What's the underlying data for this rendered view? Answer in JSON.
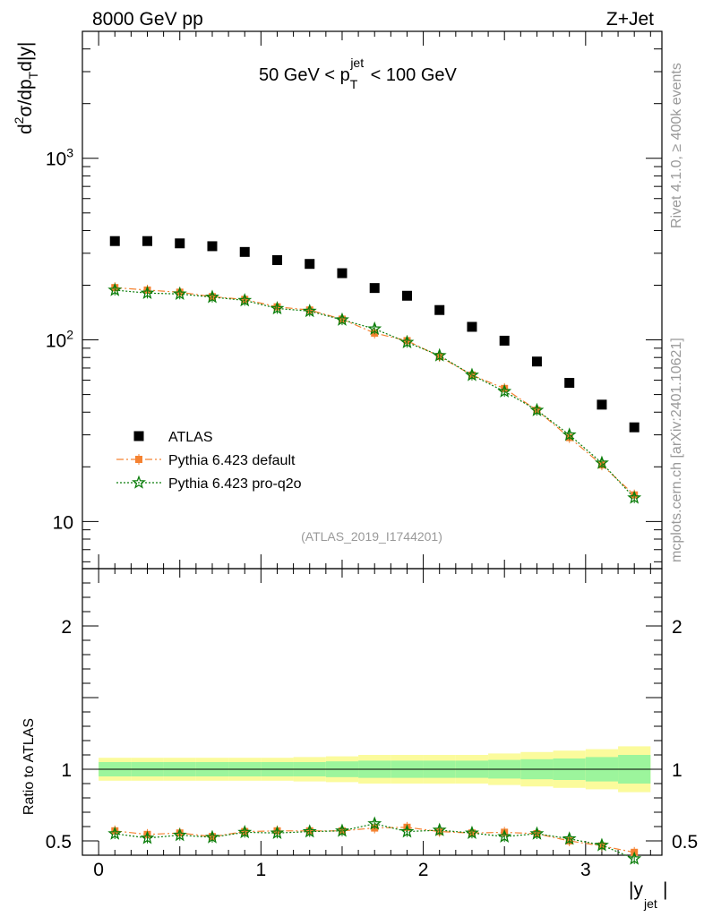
{
  "header": {
    "left": "8000 GeV pp",
    "right": "Z+Jet"
  },
  "main_panel": {
    "ylabel": "d²σ/dp_T d|y|",
    "cut_label": "50 GeV < p_T^jet < 100 GeV",
    "watermark": "(ATLAS_2019_I1744201)",
    "side_label_top": "Rivet 4.1.0, ≥ 400k events",
    "side_label_bottom": "mcplots.cern.ch [arXiv:2401.10621]",
    "yticks": [
      "10",
      "10²",
      "10³"
    ]
  },
  "ratio_panel": {
    "ylabel": "Ratio to ATLAS",
    "yticks": [
      "0.5",
      "1",
      "2"
    ]
  },
  "xaxis": {
    "label": "|y_jet|",
    "ticks": [
      "0",
      "1",
      "2",
      "3"
    ]
  },
  "legend": [
    {
      "label": "ATLAS",
      "style": "data"
    },
    {
      "label": "Pythia 6.423 default",
      "style": "default"
    },
    {
      "label": "Pythia 6.423 pro-q2o",
      "style": "proq2o"
    }
  ],
  "colors": {
    "data": "#000000",
    "default": "#f58231",
    "proq2o": "#0a7d0a",
    "band_inner": "#9cf59c",
    "band_outer": "#fbfb9c",
    "axis": "#000000",
    "watermark": "#999999"
  },
  "chart_data": [
    {
      "type": "scatter",
      "title": "50 GeV < p_T^jet < 100 GeV",
      "xlabel": "|y_jet|",
      "ylabel": "d²σ/dp_T d|y|",
      "yscale": "log",
      "xlim": [
        -0.1,
        3.47
      ],
      "ylim": [
        5.5,
        5000
      ],
      "x": [
        0.1,
        0.3,
        0.5,
        0.7,
        0.9,
        1.1,
        1.3,
        1.5,
        1.7,
        1.9,
        2.1,
        2.3,
        2.5,
        2.7,
        2.9,
        3.1,
        3.3
      ],
      "series": [
        {
          "name": "ATLAS",
          "values": [
            350,
            350,
            340,
            328,
            305,
            275,
            262,
            233,
            193,
            175,
            146,
            118,
            99,
            76,
            58,
            44,
            33
          ]
        },
        {
          "name": "Pythia 6.423 default",
          "values": [
            194,
            188,
            183,
            173,
            167,
            152,
            146,
            130,
            109,
            99,
            81,
            64,
            54,
            41,
            29,
            20.5,
            14
          ]
        },
        {
          "name": "Pythia 6.423 pro-q2o",
          "values": [
            188,
            181,
            179,
            172,
            165,
            149,
            144,
            129,
            115,
            97,
            82,
            64,
            52,
            41,
            30,
            21,
            13.5
          ]
        }
      ]
    },
    {
      "type": "line",
      "title": "Ratio to ATLAS",
      "xlabel": "|y_jet|",
      "ylabel": "Ratio to ATLAS",
      "xlim": [
        -0.1,
        3.47
      ],
      "ylim": [
        0.4,
        2.4
      ],
      "x": [
        0.1,
        0.3,
        0.5,
        0.7,
        0.9,
        1.1,
        1.3,
        1.5,
        1.7,
        1.9,
        2.1,
        2.3,
        2.5,
        2.7,
        2.9,
        3.1,
        3.3
      ],
      "series": [
        {
          "name": "Pythia 6.423 default",
          "values": [
            0.57,
            0.545,
            0.555,
            0.53,
            0.565,
            0.57,
            0.57,
            0.57,
            0.59,
            0.595,
            0.565,
            0.555,
            0.56,
            0.55,
            0.5,
            0.465,
            0.42
          ]
        },
        {
          "name": "Pythia 6.423 pro-q2o",
          "values": [
            0.55,
            0.52,
            0.54,
            0.525,
            0.56,
            0.555,
            0.565,
            0.57,
            0.62,
            0.565,
            0.575,
            0.555,
            0.53,
            0.55,
            0.515,
            0.47,
            0.375
          ]
        }
      ],
      "bands": {
        "edges": [
          0.0,
          0.2,
          0.4,
          0.6,
          0.8,
          1.0,
          1.2,
          1.4,
          1.6,
          1.8,
          2.0,
          2.2,
          2.4,
          2.6,
          2.8,
          3.0,
          3.2,
          3.4
        ],
        "inner_halfwidth": [
          0.05,
          0.05,
          0.05,
          0.05,
          0.05,
          0.05,
          0.05,
          0.055,
          0.06,
          0.06,
          0.06,
          0.06,
          0.065,
          0.07,
          0.075,
          0.085,
          0.1
        ],
        "outer_halfwidth": [
          0.08,
          0.08,
          0.08,
          0.08,
          0.08,
          0.08,
          0.085,
          0.09,
          0.1,
          0.1,
          0.1,
          0.1,
          0.11,
          0.12,
          0.13,
          0.14,
          0.16
        ]
      },
      "reference_line": 1.0
    }
  ]
}
